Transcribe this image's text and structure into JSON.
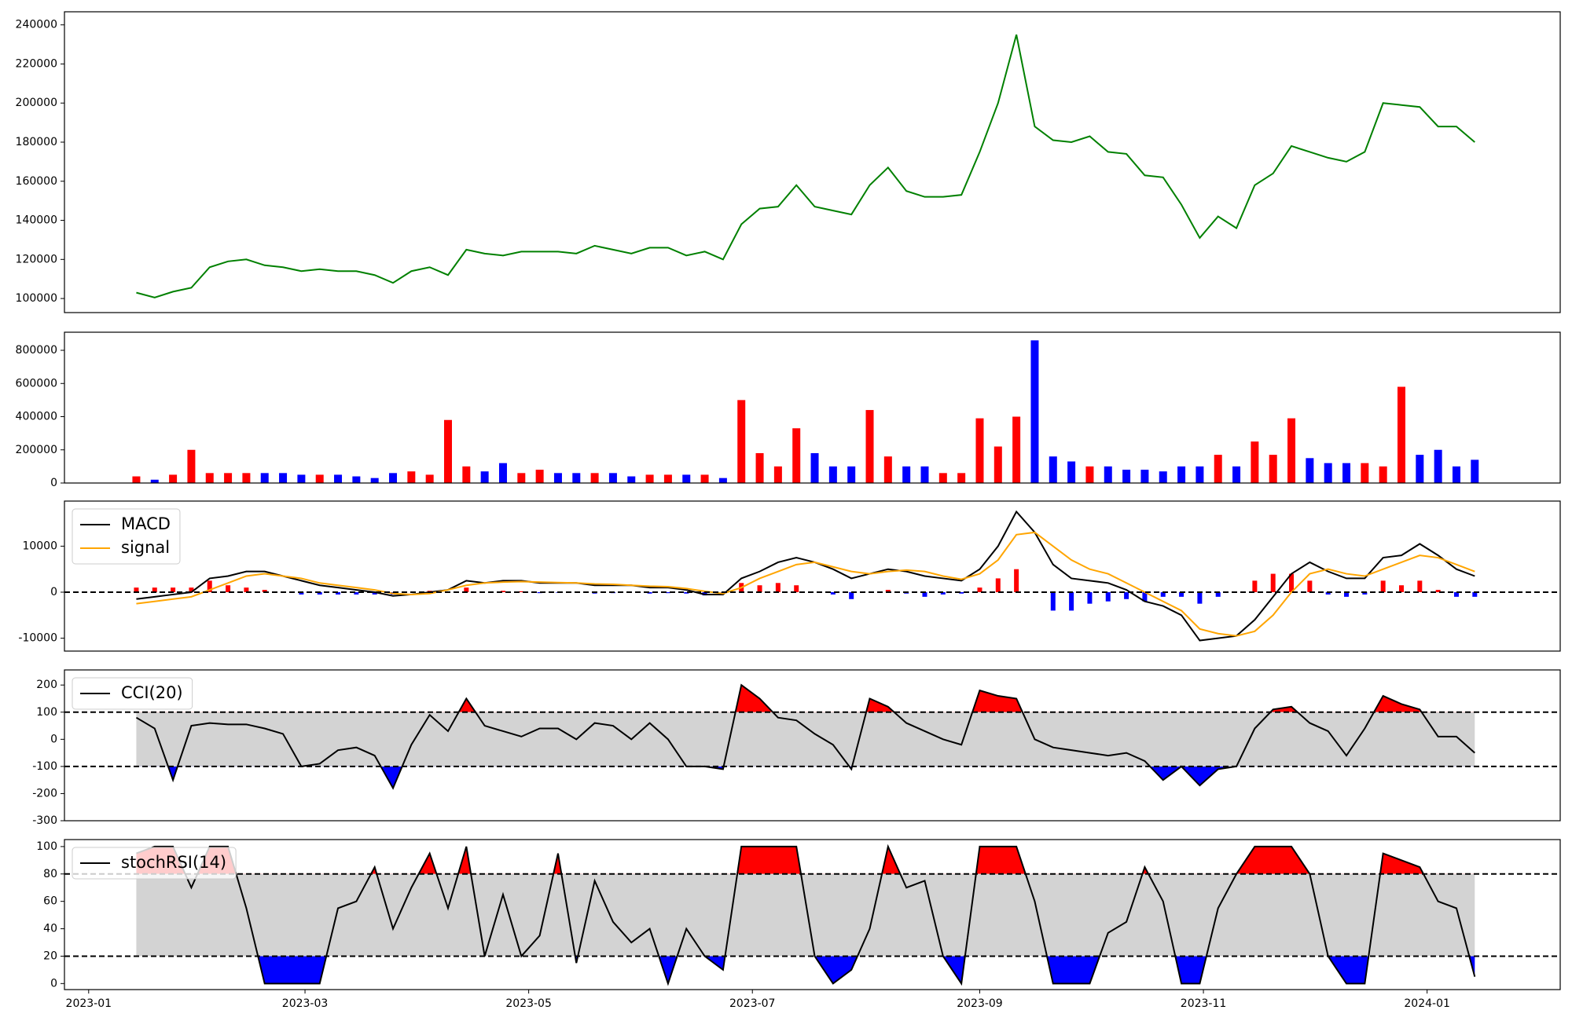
{
  "chart_data": [
    {
      "type": "line",
      "color": "green",
      "x": [
        19371,
        19376,
        19381,
        19386,
        19391,
        19396,
        19401,
        19406,
        19411,
        19416,
        19421,
        19426,
        19431,
        19436,
        19441,
        19446,
        19451,
        19456,
        19461,
        19466,
        19471,
        19476,
        19481,
        19486,
        19491,
        19496,
        19501,
        19506,
        19511,
        19516,
        19521,
        19526,
        19531,
        19536,
        19541,
        19546,
        19551,
        19556,
        19561,
        19566,
        19571,
        19576,
        19581,
        19586,
        19591,
        19596,
        19601,
        19606,
        19611,
        19616,
        19621,
        19626,
        19631,
        19636,
        19641,
        19646,
        19651,
        19656,
        19661,
        19666,
        19671,
        19676,
        19681,
        19686,
        19691,
        19696,
        19701,
        19706,
        19711,
        19716,
        19721,
        19726,
        19731,
        19736
      ],
      "values": [
        103000,
        100500,
        103500,
        105500,
        116000,
        119000,
        120000,
        117000,
        116000,
        114000,
        115000,
        114000,
        114000,
        112000,
        108000,
        114000,
        116000,
        112000,
        125000,
        123000,
        122000,
        124000,
        124000,
        124000,
        123000,
        127000,
        125000,
        123000,
        126000,
        126000,
        122000,
        124000,
        120000,
        138000,
        146000,
        147000,
        158000,
        147000,
        145000,
        143000,
        158000,
        167000,
        155000,
        152000,
        152000,
        153000,
        175000,
        200000,
        235000,
        188000,
        181000,
        180000,
        183000,
        175000,
        174000,
        163000,
        162000,
        148000,
        131000,
        142000,
        136000,
        158000,
        164000,
        178000,
        175000,
        172000,
        170000,
        175000,
        200000,
        199000,
        198000,
        188000,
        188000,
        180000
      ],
      "xlim": [
        19351.4,
        19759.3
      ],
      "ylim": [
        92800,
        246700
      ],
      "yticks": [
        100000,
        120000,
        140000,
        160000,
        180000,
        200000,
        220000,
        240000
      ]
    },
    {
      "type": "bar",
      "x": [
        19371,
        19376,
        19381,
        19386,
        19391,
        19396,
        19401,
        19406,
        19411,
        19416,
        19421,
        19426,
        19431,
        19436,
        19441,
        19446,
        19451,
        19456,
        19461,
        19466,
        19471,
        19476,
        19481,
        19486,
        19491,
        19496,
        19501,
        19506,
        19511,
        19516,
        19521,
        19526,
        19531,
        19536,
        19541,
        19546,
        19551,
        19556,
        19561,
        19566,
        19571,
        19576,
        19581,
        19586,
        19591,
        19596,
        19601,
        19606,
        19611,
        19616,
        19621,
        19626,
        19631,
        19636,
        19641,
        19646,
        19651,
        19656,
        19661,
        19666,
        19671,
        19676,
        19681,
        19686,
        19691,
        19696,
        19701,
        19706,
        19711,
        19716,
        19721,
        19726,
        19731,
        19736
      ],
      "values": [
        40000,
        20000,
        50000,
        200000,
        60000,
        60000,
        60000,
        60000,
        60000,
        50000,
        50000,
        50000,
        40000,
        30000,
        60000,
        70000,
        50000,
        380000,
        100000,
        70000,
        120000,
        60000,
        80000,
        60000,
        60000,
        60000,
        60000,
        40000,
        50000,
        50000,
        50000,
        50000,
        30000,
        500000,
        180000,
        100000,
        330000,
        180000,
        100000,
        100000,
        440000,
        160000,
        100000,
        100000,
        60000,
        60000,
        390000,
        220000,
        400000,
        860000,
        160000,
        130000,
        100000,
        100000,
        80000,
        80000,
        70000,
        100000,
        100000,
        170000,
        100000,
        250000,
        170000,
        390000,
        150000,
        120000,
        120000,
        120000,
        100000,
        580000,
        170000,
        200000,
        100000,
        140000
      ],
      "colors": [
        "red",
        "blue",
        "red",
        "red",
        "red",
        "red",
        "red",
        "blue",
        "blue",
        "blue",
        "red",
        "blue",
        "blue",
        "blue",
        "blue",
        "red",
        "red",
        "red",
        "red",
        "blue",
        "blue",
        "red",
        "red",
        "blue",
        "blue",
        "red",
        "blue",
        "blue",
        "red",
        "red",
        "blue",
        "red",
        "blue",
        "red",
        "red",
        "red",
        "red",
        "blue",
        "blue",
        "blue",
        "red",
        "red",
        "blue",
        "blue",
        "red",
        "red",
        "red",
        "red",
        "red",
        "blue",
        "blue",
        "blue",
        "red",
        "blue",
        "blue",
        "blue",
        "blue",
        "blue",
        "blue",
        "red",
        "blue",
        "red",
        "red",
        "red",
        "blue",
        "blue",
        "blue",
        "red",
        "red",
        "red",
        "blue",
        "blue",
        "blue",
        "blue"
      ],
      "xlim": [
        19351.4,
        19759.3
      ],
      "ylim": [
        0,
        909000
      ],
      "yticks": [
        0,
        200000,
        400000,
        600000,
        800000
      ]
    },
    {
      "type": "line",
      "x": [
        19371,
        19376,
        19381,
        19386,
        19391,
        19396,
        19401,
        19406,
        19411,
        19416,
        19421,
        19426,
        19431,
        19436,
        19441,
        19446,
        19451,
        19456,
        19461,
        19466,
        19471,
        19476,
        19481,
        19486,
        19491,
        19496,
        19501,
        19506,
        19511,
        19516,
        19521,
        19526,
        19531,
        19536,
        19541,
        19546,
        19551,
        19556,
        19561,
        19566,
        19571,
        19576,
        19581,
        19586,
        19591,
        19596,
        19601,
        19606,
        19611,
        19616,
        19621,
        19626,
        19631,
        19636,
        19641,
        19646,
        19651,
        19656,
        19661,
        19666,
        19671,
        19676,
        19681,
        19686,
        19691,
        19696,
        19701,
        19706,
        19711,
        19716,
        19721,
        19726,
        19731,
        19736
      ],
      "series": [
        {
          "name": "MACD",
          "color": "black",
          "values": [
            -1500,
            -1000,
            -500,
            0,
            3000,
            3500,
            4500,
            4500,
            3500,
            2500,
            1500,
            1000,
            500,
            0,
            -800,
            -500,
            0,
            500,
            2500,
            2000,
            2500,
            2500,
            2000,
            2000,
            2000,
            1500,
            1500,
            1500,
            1000,
            1000,
            500,
            -500,
            -500,
            3000,
            4500,
            6500,
            7500,
            6500,
            5000,
            3000,
            4000,
            5000,
            4500,
            3500,
            3000,
            2500,
            5000,
            10000,
            17500,
            13000,
            6000,
            3000,
            2500,
            2000,
            500,
            -2000,
            -3000,
            -5000,
            -10500,
            -10000,
            -9500,
            -6000,
            -1000,
            4000,
            6500,
            4500,
            3000,
            3000,
            7500,
            8000,
            10500,
            8000,
            5000,
            3500
          ]
        },
        {
          "name": "signal",
          "color": "orange",
          "values": [
            -2500,
            -2000,
            -1500,
            -1000,
            500,
            2000,
            3500,
            4000,
            3500,
            3000,
            2000,
            1500,
            1000,
            500,
            -300,
            -500,
            -300,
            500,
            1500,
            2000,
            2200,
            2300,
            2200,
            2100,
            2000,
            1800,
            1700,
            1500,
            1300,
            1200,
            800,
            200,
            -300,
            1000,
            3000,
            4500,
            6000,
            6500,
            5500,
            4500,
            4000,
            4500,
            4800,
            4500,
            3500,
            2800,
            4000,
            7000,
            12500,
            13000,
            10000,
            7000,
            5000,
            4000,
            2000,
            0,
            -2000,
            -4000,
            -8000,
            -9000,
            -9500,
            -8500,
            -5000,
            0,
            4000,
            5000,
            4000,
            3500,
            5000,
            6500,
            8000,
            7500,
            6000,
            4500
          ]
        }
      ],
      "histogram": {
        "up_color": "red",
        "down_color": "blue",
        "values": [
          1000,
          1000,
          1000,
          1000,
          2500,
          1500,
          1000,
          500,
          0,
          -500,
          -500,
          -500,
          -500,
          -500,
          -500,
          0,
          300,
          0,
          1000,
          0,
          300,
          200,
          -200,
          -100,
          0,
          -300,
          -200,
          0,
          -300,
          -200,
          -300,
          -700,
          -200,
          2000,
          1500,
          2000,
          1500,
          0,
          -500,
          -1500,
          0,
          500,
          -300,
          -1000,
          -500,
          -300,
          1000,
          3000,
          5000,
          0,
          -4000,
          -4000,
          -2500,
          -2000,
          -1500,
          -2000,
          -1000,
          -1000,
          -2500,
          -1000,
          0,
          2500,
          4000,
          4000,
          2500,
          -500,
          -1000,
          -500,
          2500,
          1500,
          2500,
          500,
          -1000,
          -1000
        ]
      },
      "hline": 0,
      "legend": "upper left",
      "xlim": [
        19351.4,
        19759.3
      ],
      "ylim": [
        -12800,
        19800
      ],
      "yticks": [
        -10000,
        0,
        10000
      ]
    },
    {
      "type": "line",
      "x": [
        19371,
        19376,
        19381,
        19386,
        19391,
        19396,
        19401,
        19406,
        19411,
        19416,
        19421,
        19426,
        19431,
        19436,
        19441,
        19446,
        19451,
        19456,
        19461,
        19466,
        19471,
        19476,
        19481,
        19486,
        19491,
        19496,
        19501,
        19506,
        19511,
        19516,
        19521,
        19526,
        19531,
        19536,
        19541,
        19546,
        19551,
        19556,
        19561,
        19566,
        19571,
        19576,
        19581,
        19586,
        19591,
        19596,
        19601,
        19606,
        19611,
        19616,
        19621,
        19626,
        19631,
        19636,
        19641,
        19646,
        19651,
        19656,
        19661,
        19666,
        19671,
        19676,
        19681,
        19686,
        19691,
        19696,
        19701,
        19706,
        19711,
        19716,
        19721,
        19726,
        19731,
        19736
      ],
      "series": [
        {
          "name": "CCI(20)",
          "color": "black",
          "values": [
            80,
            40,
            -150,
            50,
            60,
            55,
            55,
            40,
            20,
            -100,
            -90,
            -40,
            -30,
            -60,
            -180,
            -20,
            90,
            30,
            150,
            50,
            30,
            10,
            40,
            40,
            0,
            60,
            50,
            0,
            60,
            0,
            -100,
            -100,
            -110,
            200,
            150,
            80,
            70,
            20,
            -20,
            -110,
            150,
            120,
            60,
            30,
            0,
            -20,
            180,
            160,
            150,
            0,
            -30,
            -40,
            -50,
            -60,
            -50,
            -80,
            -150,
            -100,
            -170,
            -110,
            -100,
            40,
            110,
            120,
            60,
            30,
            -60,
            40,
            160,
            130,
            110,
            10,
            10,
            -50
          ]
        }
      ],
      "bands": {
        "levels": [
          -100,
          100
        ],
        "band_color": "lightgray",
        "upper_color": "red",
        "lower_color": "blue"
      },
      "legend": "upper left",
      "xlim": [
        19351.4,
        19759.3
      ],
      "ylim": [
        -300,
        255.6
      ],
      "yticks": [
        -300,
        -200,
        -100,
        0,
        100,
        200
      ]
    },
    {
      "type": "line",
      "x": [
        19371,
        19376,
        19381,
        19386,
        19391,
        19396,
        19401,
        19406,
        19411,
        19416,
        19421,
        19426,
        19431,
        19436,
        19441,
        19446,
        19451,
        19456,
        19461,
        19466,
        19471,
        19476,
        19481,
        19486,
        19491,
        19496,
        19501,
        19506,
        19511,
        19516,
        19521,
        19526,
        19531,
        19536,
        19541,
        19546,
        19551,
        19556,
        19561,
        19566,
        19571,
        19576,
        19581,
        19586,
        19591,
        19596,
        19601,
        19606,
        19611,
        19616,
        19621,
        19626,
        19631,
        19636,
        19641,
        19646,
        19651,
        19656,
        19661,
        19666,
        19671,
        19676,
        19681,
        19686,
        19691,
        19696,
        19701,
        19706,
        19711,
        19716,
        19721,
        19726,
        19731,
        19736
      ],
      "series": [
        {
          "name": "stochRSI(14)",
          "color": "black",
          "values": [
            95,
            100,
            100,
            70,
            100,
            100,
            55,
            0,
            0,
            0,
            0,
            55,
            60,
            85,
            40,
            70,
            95,
            55,
            100,
            20,
            65,
            20,
            35,
            95,
            15,
            75,
            45,
            30,
            40,
            0,
            40,
            20,
            10,
            100,
            100,
            100,
            100,
            20,
            0,
            10,
            40,
            100,
            70,
            75,
            20,
            0,
            100,
            100,
            100,
            60,
            0,
            0,
            0,
            37,
            45,
            85,
            60,
            0,
            0,
            55,
            80,
            100,
            100,
            100,
            80,
            20,
            0,
            0,
            95,
            90,
            85,
            60,
            55,
            5
          ]
        }
      ],
      "bands": {
        "levels": [
          20,
          80
        ],
        "band_color": "lightgray",
        "upper_color": "red",
        "lower_color": "blue"
      },
      "legend": "upper left",
      "xlim": [
        19351.4,
        19759.3
      ],
      "ylim": [
        -4.4,
        105.1
      ],
      "yticks": [
        0,
        20,
        40,
        60,
        80,
        100
      ],
      "xticks": [
        {
          "value": 19358,
          "label": "2023-01"
        },
        {
          "value": 19417,
          "label": "2023-03"
        },
        {
          "value": 19478,
          "label": "2023-05"
        },
        {
          "value": 19539,
          "label": "2023-07"
        },
        {
          "value": 19601,
          "label": "2023-09"
        },
        {
          "value": 19662,
          "label": "2023-11"
        },
        {
          "value": 19723,
          "label": "2024-01"
        }
      ]
    }
  ]
}
